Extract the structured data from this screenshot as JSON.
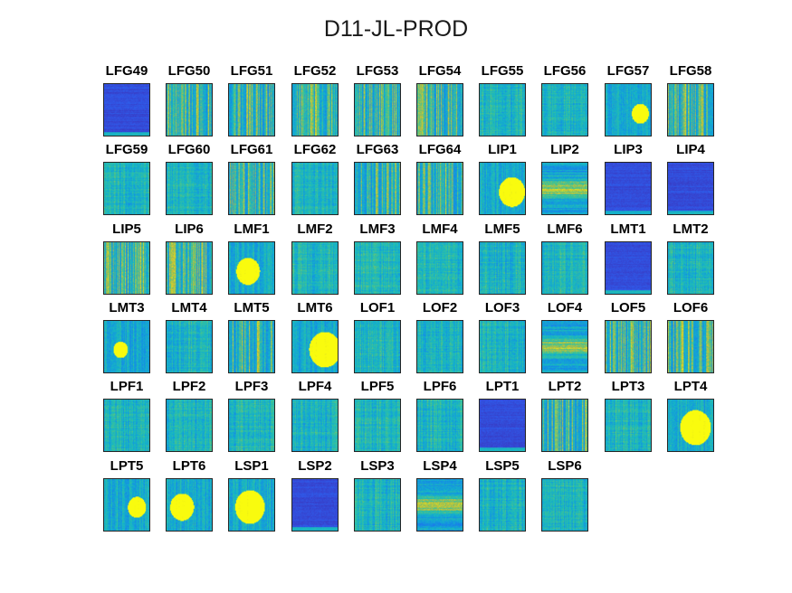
{
  "chart_data": {
    "type": "heatmap",
    "title": "D11-JL-PROD",
    "colors": {
      "low": "#3e26a8",
      "mid": "#2a9ee8",
      "high": "#f9fb0e"
    },
    "panels": [
      {
        "label": "LFG49",
        "style": "dark"
      },
      {
        "label": "LFG50",
        "style": "striped"
      },
      {
        "label": "LFG51",
        "style": "striped"
      },
      {
        "label": "LFG52",
        "style": "striped"
      },
      {
        "label": "LFG53",
        "style": "striped"
      },
      {
        "label": "LFG54",
        "style": "striped"
      },
      {
        "label": "LFG55",
        "style": "medium"
      },
      {
        "label": "LFG56",
        "style": "medium"
      },
      {
        "label": "LFG57",
        "style": "blob"
      },
      {
        "label": "LFG58",
        "style": "striped"
      },
      {
        "label": "LFG59",
        "style": "medium"
      },
      {
        "label": "LFG60",
        "style": "medium"
      },
      {
        "label": "LFG61",
        "style": "striped"
      },
      {
        "label": "LFG62",
        "style": "medium"
      },
      {
        "label": "LFG63",
        "style": "striped"
      },
      {
        "label": "LFG64",
        "style": "striped"
      },
      {
        "label": "LIP1",
        "style": "blob"
      },
      {
        "label": "LIP2",
        "style": "band"
      },
      {
        "label": "LIP3",
        "style": "dark"
      },
      {
        "label": "LIP4",
        "style": "dark"
      },
      {
        "label": "LIP5",
        "style": "striped"
      },
      {
        "label": "LIP6",
        "style": "striped"
      },
      {
        "label": "LMF1",
        "style": "blob"
      },
      {
        "label": "LMF2",
        "style": "medium"
      },
      {
        "label": "LMF3",
        "style": "medium"
      },
      {
        "label": "LMF4",
        "style": "medium"
      },
      {
        "label": "LMF5",
        "style": "medium"
      },
      {
        "label": "LMF6",
        "style": "medium"
      },
      {
        "label": "LMT1",
        "style": "dark"
      },
      {
        "label": "LMT2",
        "style": "medium"
      },
      {
        "label": "LMT3",
        "style": "blob"
      },
      {
        "label": "LMT4",
        "style": "medium"
      },
      {
        "label": "LMT5",
        "style": "striped"
      },
      {
        "label": "LMT6",
        "style": "blob"
      },
      {
        "label": "LOF1",
        "style": "medium"
      },
      {
        "label": "LOF2",
        "style": "medium"
      },
      {
        "label": "LOF3",
        "style": "medium"
      },
      {
        "label": "LOF4",
        "style": "band"
      },
      {
        "label": "LOF5",
        "style": "striped"
      },
      {
        "label": "LOF6",
        "style": "striped"
      },
      {
        "label": "LPF1",
        "style": "medium"
      },
      {
        "label": "LPF2",
        "style": "medium"
      },
      {
        "label": "LPF3",
        "style": "medium"
      },
      {
        "label": "LPF4",
        "style": "medium"
      },
      {
        "label": "LPF5",
        "style": "medium"
      },
      {
        "label": "LPF6",
        "style": "medium"
      },
      {
        "label": "LPT1",
        "style": "dark"
      },
      {
        "label": "LPT2",
        "style": "striped"
      },
      {
        "label": "LPT3",
        "style": "medium"
      },
      {
        "label": "LPT4",
        "style": "blob"
      },
      {
        "label": "LPT5",
        "style": "blob"
      },
      {
        "label": "LPT6",
        "style": "blob"
      },
      {
        "label": "LSP1",
        "style": "blob"
      },
      {
        "label": "LSP2",
        "style": "dark"
      },
      {
        "label": "LSP3",
        "style": "medium"
      },
      {
        "label": "LSP4",
        "style": "band"
      },
      {
        "label": "LSP5",
        "style": "medium"
      },
      {
        "label": "LSP6",
        "style": "medium"
      }
    ]
  }
}
